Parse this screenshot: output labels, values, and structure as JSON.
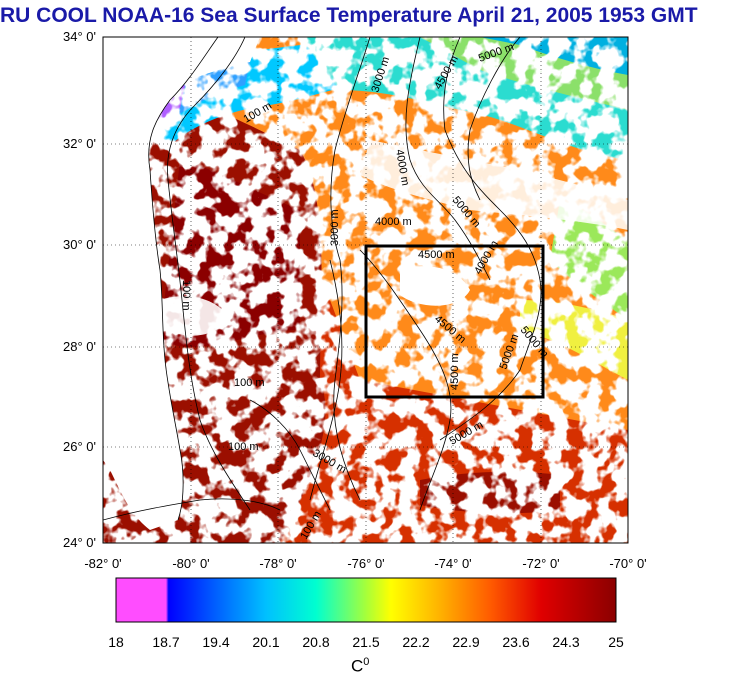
{
  "title": "RU COOL  NOAA-16 Sea Surface Temperature April 21, 2005 1953 GMT",
  "axes": {
    "lat_labels": [
      "34° 0'",
      "32° 0'",
      "30° 0'",
      "28° 0'",
      "26° 0'",
      "24° 0'"
    ],
    "lon_labels": [
      "-82° 0'",
      "-80° 0'",
      "-78° 0'",
      "-76° 0'",
      "-74° 0'",
      "-72° 0'",
      "-70° 0'"
    ],
    "lat_range": [
      24,
      34
    ],
    "lon_range": [
      -82,
      -70
    ]
  },
  "box": {
    "lon": [
      -76,
      -72
    ],
    "lat": [
      27,
      30
    ]
  },
  "contours": [
    "100 m",
    "3000 m",
    "4000 m",
    "4500 m",
    "5000 m"
  ],
  "colorbar": {
    "labels": [
      "18",
      "18.7",
      "19.4",
      "20.1",
      "20.8",
      "21.5",
      "22.2",
      "22.9",
      "23.6",
      "24.3",
      "25"
    ],
    "unit": "C",
    "unit_sup": "0",
    "colors": [
      "#ff4dff",
      "#0000ff",
      "#00b7ff",
      "#00ffd0",
      "#a6ff3a",
      "#ffff00",
      "#ffb000",
      "#ff5a00",
      "#e00000",
      "#8b0000"
    ]
  }
}
